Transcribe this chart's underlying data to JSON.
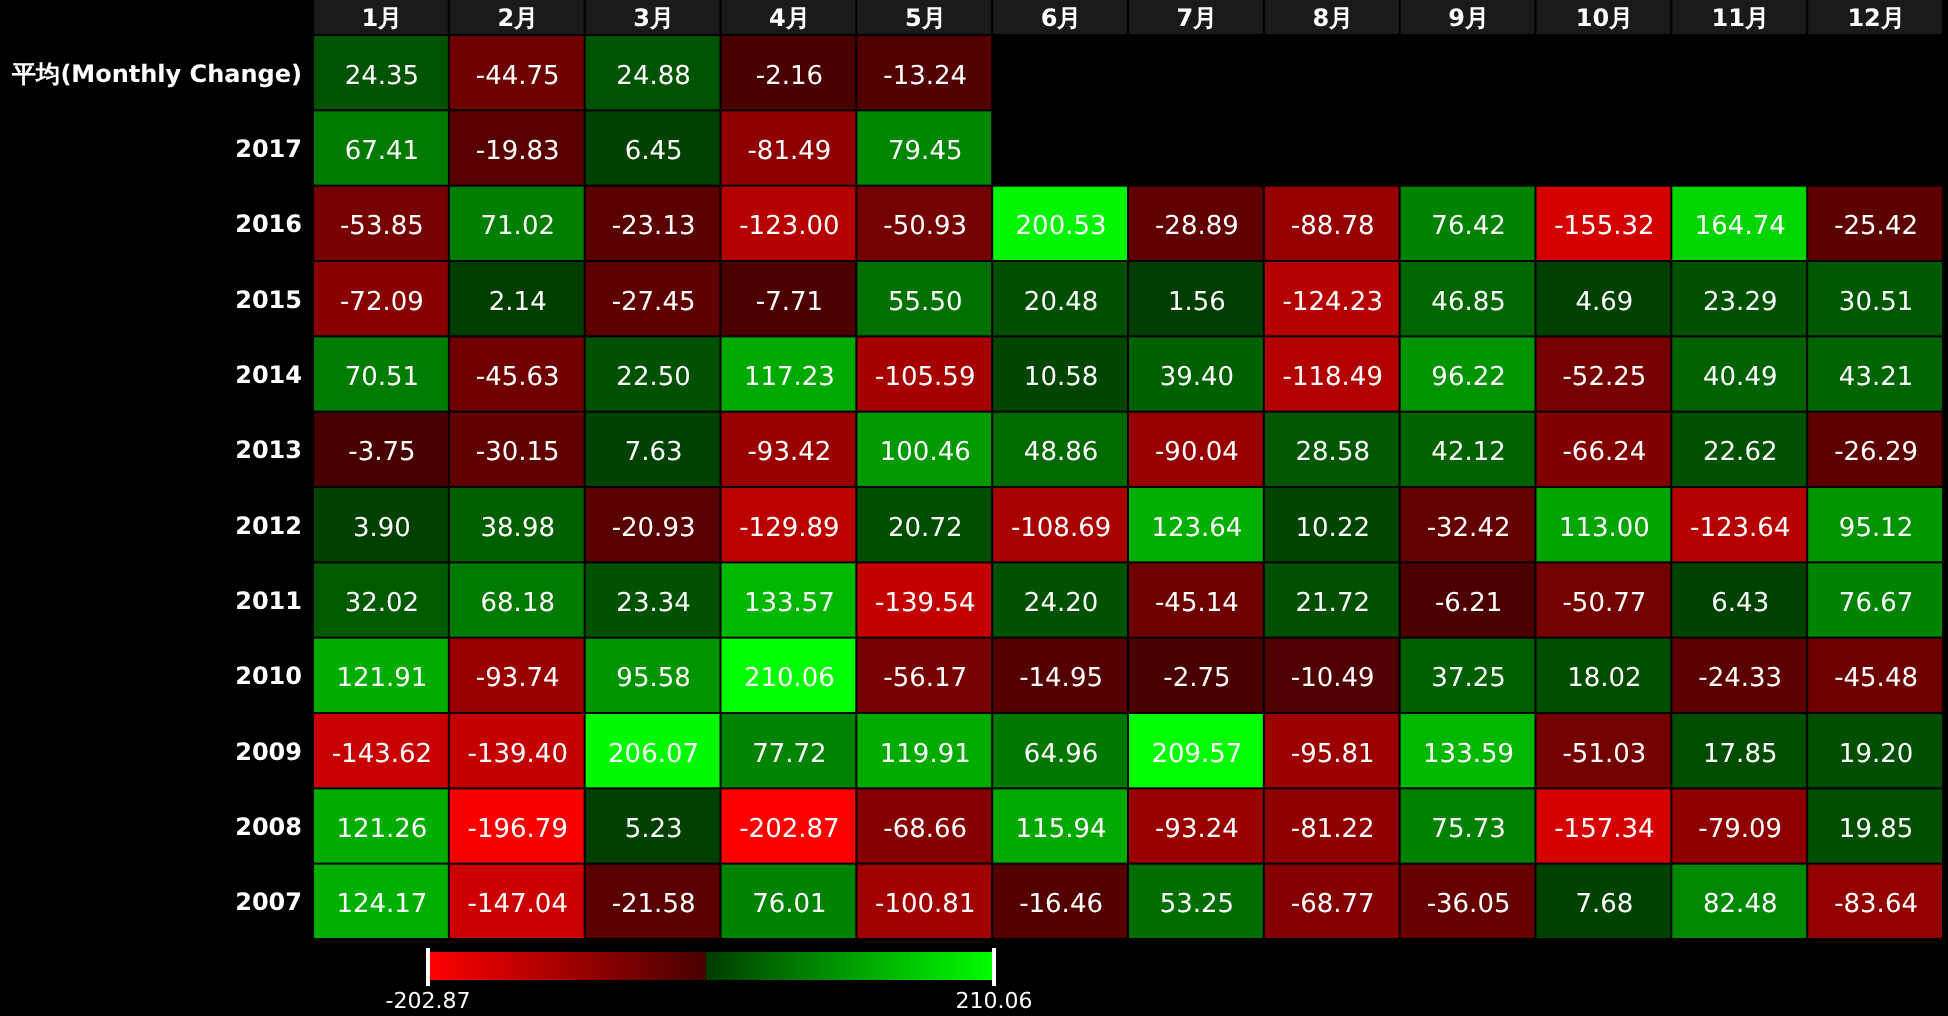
{
  "chart_data": {
    "type": "heatmap",
    "categories": [
      "1月",
      "2月",
      "3月",
      "4月",
      "5月",
      "6月",
      "7月",
      "8月",
      "9月",
      "10月",
      "11月",
      "12月"
    ],
    "y_categories": [
      "平均(Monthly Change)",
      "2017",
      "2016",
      "2015",
      "2014",
      "2013",
      "2012",
      "2011",
      "2010",
      "2009",
      "2008",
      "2007"
    ],
    "cells": [
      [
        24.35,
        -44.75,
        24.88,
        -2.16,
        -13.24,
        null,
        null,
        null,
        null,
        null,
        null,
        null
      ],
      [
        67.41,
        -19.83,
        6.45,
        -81.49,
        79.45,
        null,
        null,
        null,
        null,
        null,
        null,
        null
      ],
      [
        -53.85,
        71.02,
        -23.13,
        -123.0,
        -50.93,
        200.53,
        -28.89,
        -88.78,
        76.42,
        -155.32,
        164.74,
        -25.42
      ],
      [
        -72.09,
        2.14,
        -27.45,
        -7.71,
        55.5,
        20.48,
        1.56,
        -124.23,
        46.85,
        4.69,
        23.29,
        30.51
      ],
      [
        70.51,
        -45.63,
        22.5,
        117.23,
        -105.59,
        10.58,
        39.4,
        -118.49,
        96.22,
        -52.25,
        40.49,
        43.21
      ],
      [
        -3.75,
        -30.15,
        7.63,
        -93.42,
        100.46,
        48.86,
        -90.04,
        28.58,
        42.12,
        -66.24,
        22.62,
        -26.29
      ],
      [
        3.9,
        38.98,
        -20.93,
        -129.89,
        20.72,
        -108.69,
        123.64,
        10.22,
        -32.42,
        113.0,
        -123.64,
        95.12
      ],
      [
        32.02,
        68.18,
        23.34,
        133.57,
        -139.54,
        24.2,
        -45.14,
        21.72,
        -6.21,
        -50.77,
        6.43,
        76.67
      ],
      [
        121.91,
        -93.74,
        95.58,
        210.06,
        -56.17,
        -14.95,
        -2.75,
        -10.49,
        37.25,
        18.02,
        -24.33,
        -45.48
      ],
      [
        -143.62,
        -139.4,
        206.07,
        77.72,
        119.91,
        64.96,
        209.57,
        -95.81,
        133.59,
        -51.03,
        17.85,
        19.2
      ],
      [
        121.26,
        -196.79,
        5.23,
        -202.87,
        -68.66,
        115.94,
        -93.24,
        -81.22,
        75.73,
        -157.34,
        -79.09,
        19.85
      ],
      [
        124.17,
        -147.04,
        -21.58,
        76.01,
        -100.81,
        -16.46,
        53.25,
        -68.77,
        -36.05,
        7.68,
        82.48,
        -83.64
      ]
    ],
    "cell_labels": [
      [
        "24.35",
        "-44.75",
        "24.88",
        "-2.16",
        "-13.24",
        null,
        null,
        null,
        null,
        null,
        null,
        null
      ],
      [
        "67.41",
        "-19.83",
        "6.45",
        "-81.49",
        "79.45",
        null,
        null,
        null,
        null,
        null,
        null,
        null
      ],
      [
        "-53.85",
        "71.02",
        "-23.13",
        "-123.00",
        "-50.93",
        "200.53",
        "-28.89",
        "-88.78",
        "76.42",
        "-155.32",
        "164.74",
        "-25.42"
      ],
      [
        "-72.09",
        "2.14",
        "-27.45",
        "-7.71",
        "55.50",
        "20.48",
        "1.56",
        "-124.23",
        "46.85",
        "4.69",
        "23.29",
        "30.51"
      ],
      [
        "70.51",
        "-45.63",
        "22.50",
        "117.23",
        "-105.59",
        "10.58",
        "39.40",
        "-118.49",
        "96.22",
        "-52.25",
        "40.49",
        "43.21"
      ],
      [
        "-3.75",
        "-30.15",
        "7.63",
        "-93.42",
        "100.46",
        "48.86",
        "-90.04",
        "28.58",
        "42.12",
        "-66.24",
        "22.62",
        "-26.29"
      ],
      [
        "3.90",
        "38.98",
        "-20.93",
        "-129.89",
        "20.72",
        "-108.69",
        "123.64",
        "10.22",
        "-32.42",
        "113.00",
        "-123.64",
        "95.12"
      ],
      [
        "32.02",
        "68.18",
        "23.34",
        "133.57",
        "-139.54",
        "24.20",
        "-45.14",
        "21.72",
        "-6.21",
        "-50.77",
        "6.43",
        "76.67"
      ],
      [
        "121.91",
        "-93.74",
        "95.58",
        "210.06",
        "-56.17",
        "-14.95",
        "-2.75",
        "-10.49",
        "37.25",
        "18.02",
        "-24.33",
        "-45.48"
      ],
      [
        "-143.62",
        "-139.40",
        "206.07",
        "77.72",
        "119.91",
        "64.96",
        "209.57",
        "-95.81",
        "133.59",
        "-51.03",
        "17.85",
        "19.20"
      ],
      [
        "121.26",
        "-196.79",
        "5.23",
        "-202.87",
        "-68.66",
        "115.94",
        "-93.24",
        "-81.22",
        "75.73",
        "-157.34",
        "-79.09",
        "19.85"
      ],
      [
        "124.17",
        "-147.04",
        "-21.58",
        "76.01",
        "-100.81",
        "-16.46",
        "53.25",
        "-68.77",
        "-36.05",
        "7.68",
        "82.48",
        "-83.64"
      ]
    ],
    "clim": [
      -202.87,
      210.06
    ],
    "cticks": [
      -202.87,
      210.06
    ]
  }
}
